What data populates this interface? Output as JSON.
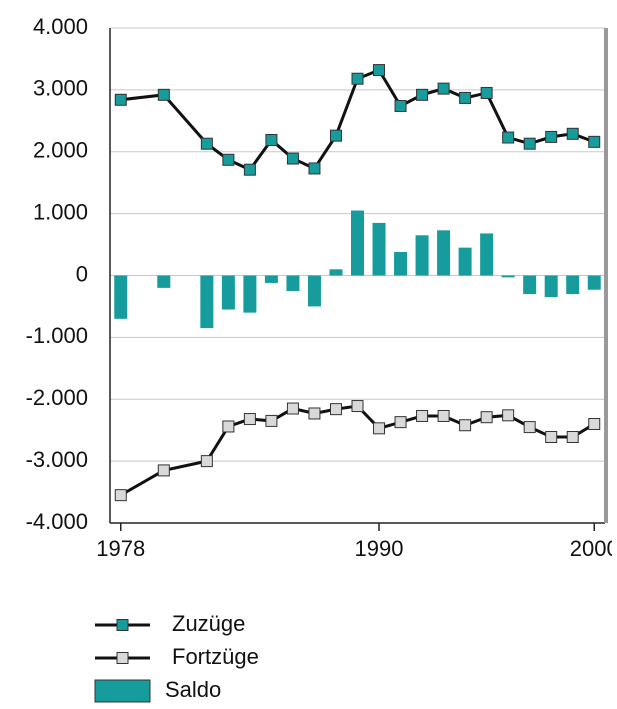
{
  "chart_data": {
    "type": "combo",
    "x": [
      1978,
      1980,
      1982,
      1983,
      1984,
      1985,
      1986,
      1987,
      1988,
      1989,
      1990,
      1991,
      1992,
      1993,
      1994,
      1995,
      1996,
      1997,
      1998,
      1999,
      2000
    ],
    "series": [
      {
        "name": "Zuzüge",
        "type": "line",
        "color": "#169c9c",
        "values": [
          2840,
          2920,
          2130,
          1870,
          1710,
          2190,
          1890,
          1730,
          2260,
          3180,
          3320,
          2740,
          2920,
          3020,
          2870,
          2950,
          2230,
          2130,
          2240,
          2290,
          2160
        ]
      },
      {
        "name": "Fortzüge",
        "type": "line",
        "color": "#d9d9d9",
        "values": [
          -3550,
          -3150,
          -3000,
          -2440,
          -2320,
          -2350,
          -2150,
          -2230,
          -2160,
          -2110,
          -2470,
          -2370,
          -2270,
          -2270,
          -2420,
          -2290,
          -2260,
          -2450,
          -2610,
          -2610,
          -2400
        ]
      },
      {
        "name": "Saldo",
        "type": "bar",
        "color": "#169c9c",
        "values": [
          -700,
          -200,
          -850,
          -550,
          -600,
          -120,
          -250,
          -500,
          100,
          1050,
          850,
          380,
          650,
          730,
          450,
          680,
          -30,
          -300,
          -350,
          -300,
          -230
        ]
      }
    ],
    "xlim": [
      1977.5,
      2000.5
    ],
    "xticks": [
      1978,
      1990,
      2000
    ],
    "ylim": [
      -4000,
      4000
    ],
    "yticks": [
      {
        "value": -4000,
        "label": "-4.000"
      },
      {
        "value": -3000,
        "label": "-3.000"
      },
      {
        "value": -2000,
        "label": "-2.000"
      },
      {
        "value": -1000,
        "label": "-1.000"
      },
      0,
      {
        "value": 1000,
        "label": "1.000"
      },
      {
        "value": 2000,
        "label": "2.000"
      },
      {
        "value": 3000,
        "label": "3.000"
      },
      {
        "value": 4000,
        "label": "4.000"
      }
    ],
    "grid": true,
    "legend": "bottom"
  }
}
